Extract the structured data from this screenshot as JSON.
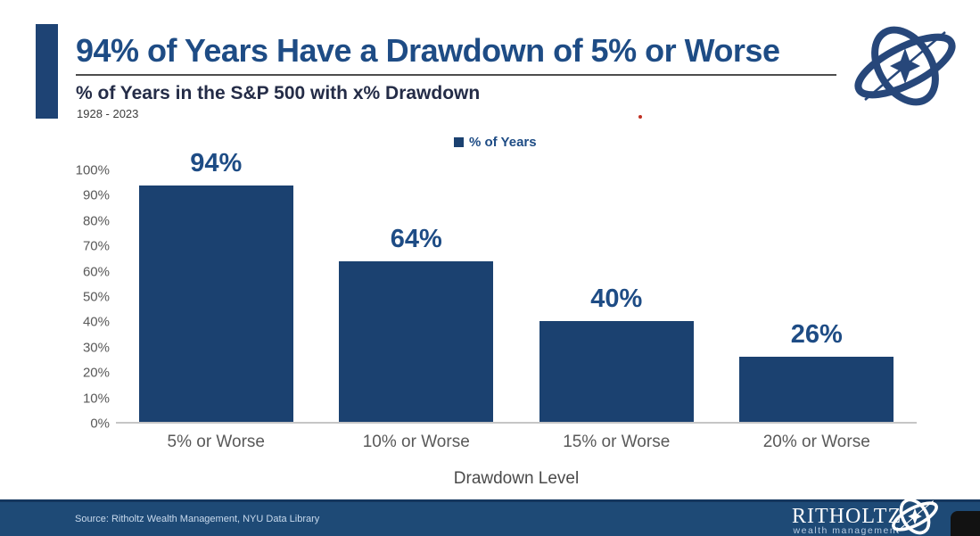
{
  "header": {
    "title": "94% of Years Have a Drawdown of 5% or Worse",
    "subtitle": "% of Years in the S&P 500 with x% Drawdown",
    "date_range": "1928 - 2023"
  },
  "legend": {
    "label": "% of Years"
  },
  "chart_data": {
    "type": "bar",
    "title": "% of Years in the S&P 500 with x% Drawdown",
    "subtitle_period": "1928 - 2023",
    "categories": [
      "5% or Worse",
      "10% or Worse",
      "15% or Worse",
      "20% or Worse"
    ],
    "values": [
      94,
      64,
      40,
      26
    ],
    "data_labels": [
      "94%",
      "64%",
      "40%",
      "26%"
    ],
    "series_name": "% of Years",
    "xlabel": "Drawdown Level",
    "ylabel": "",
    "ylim": [
      0,
      100
    ],
    "yticks": [
      "0%",
      "10%",
      "20%",
      "30%",
      "40%",
      "50%",
      "60%",
      "70%",
      "80%",
      "90%",
      "100%"
    ],
    "grid": false,
    "legend_position": "top-center",
    "bar_color": "#1b4170",
    "label_color": "#1e4c85"
  },
  "footer": {
    "source": "Source: Ritholtz Wealth Management, NYU Data Library",
    "brand_name": "RITHOLTZ",
    "brand_subtitle": "wealth management"
  },
  "colors": {
    "accent_navy": "#1e4374",
    "title_navy": "#1e4c85",
    "bar_navy": "#1b4170",
    "footer_navy": "#1e4a76",
    "axis_gray": "#c6c6c6",
    "text_gray": "#595959"
  },
  "icons": {
    "top_right": "gyroscope-logo-icon",
    "footer_right": "gyroscope-logo-icon"
  }
}
